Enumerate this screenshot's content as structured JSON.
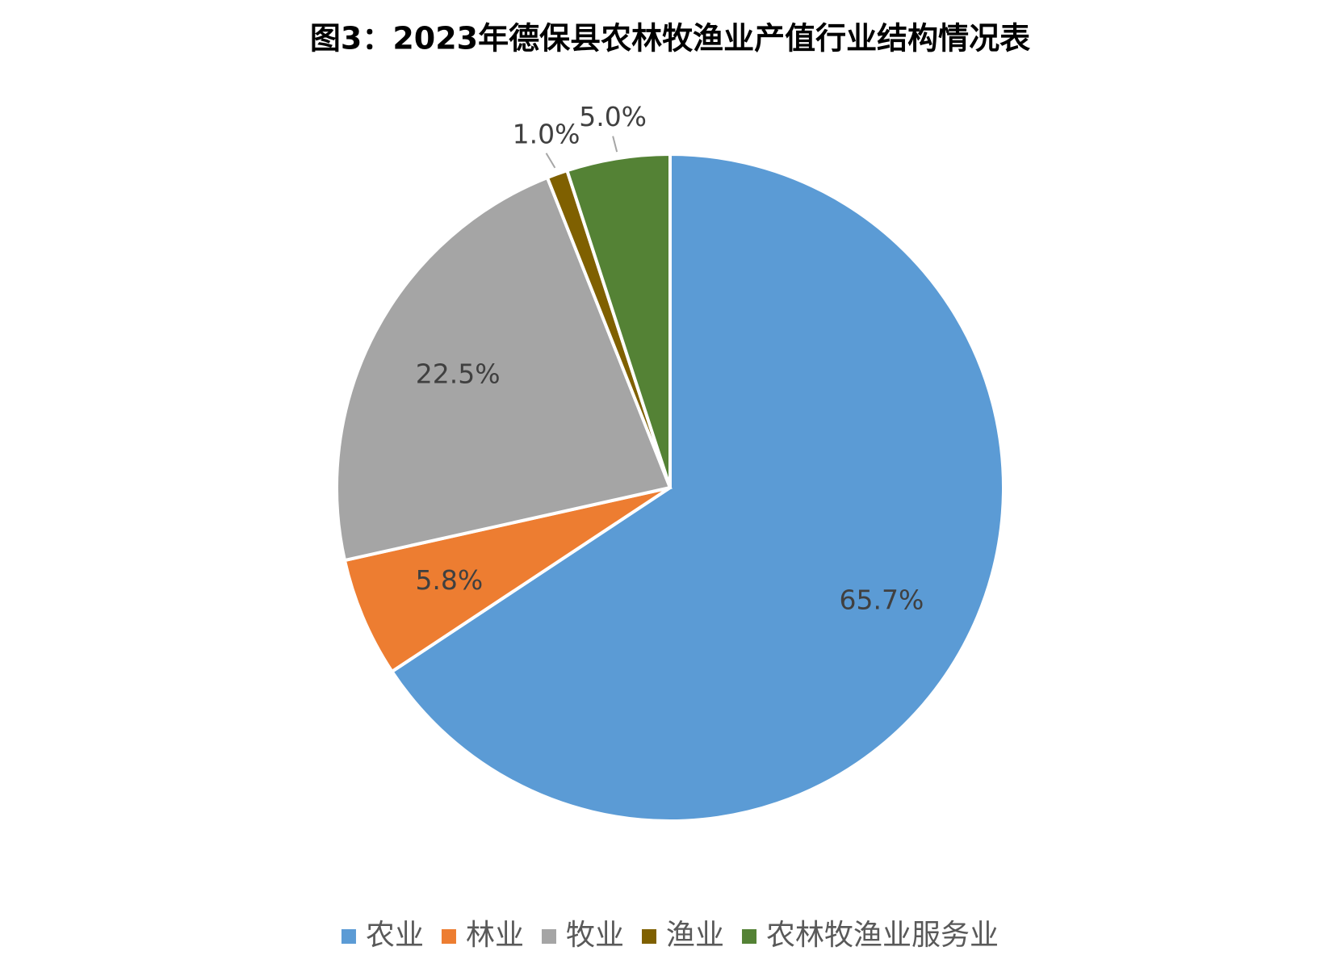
{
  "chart_data": {
    "type": "pie",
    "title": "图3：2023年德保县农林牧渔业产值行业结构情况表",
    "categories": [
      "农业",
      "林业",
      "牧业",
      "渔业",
      "农林牧渔业服务业"
    ],
    "values": [
      65.7,
      5.8,
      22.5,
      1.0,
      5.0
    ],
    "value_labels": [
      "65.7%",
      "5.8%",
      "22.5%",
      "1.0%",
      "5.0%"
    ],
    "colors": [
      "#5b9bd5",
      "#ed7d31",
      "#a5a5a5",
      "#7f6000",
      "#548235"
    ],
    "legend": "bottom"
  }
}
